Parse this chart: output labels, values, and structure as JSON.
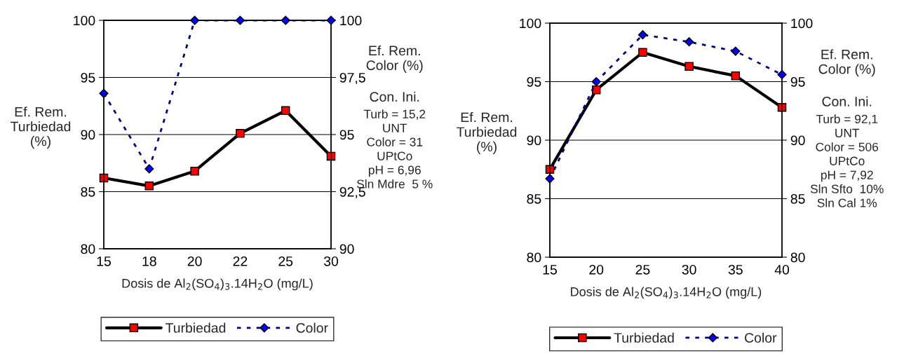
{
  "chart_data": [
    {
      "type": "line",
      "xlabel": "Dosis de Al$_{2}$(SO$_{4}$)$_{3}$.14H$_{2}$O (mg/L)",
      "ylabel": "Ef. Rem.\nTurbiedad\n(%)",
      "y2label": "Ef. Rem.\nColor (%)",
      "categories": [
        "15",
        "18",
        "20",
        "22",
        "25",
        "30"
      ],
      "series": [
        {
          "name": "Turbiedad",
          "color": "#000000",
          "marker": "square",
          "line_style": "solid",
          "values": [
            86.2,
            85.5,
            86.8,
            90.1,
            92.1,
            88.1
          ]
        },
        {
          "name": "Color",
          "color": "#000080",
          "marker": "diamond",
          "line_style": "dashed",
          "axis": "y2",
          "values": [
            96.8,
            93.5,
            100,
            100,
            100,
            100
          ]
        }
      ],
      "ylim": [
        80,
        100
      ],
      "yticks": [
        80,
        85,
        90,
        95,
        100
      ],
      "y2lim": [
        90,
        100
      ],
      "y2ticks": [
        90,
        {
          "value": 92.5,
          "label": "92,5"
        },
        95,
        {
          "value": 97.5,
          "label": "97,5"
        },
        100
      ],
      "grid": "y",
      "legend": "bottom",
      "annotations": [
        "Con. Ini.",
        "Turb = 15,2\nUNT\nColor = 31\nUPtCo\npH = 6,96\nSln Mdre  5 %"
      ]
    },
    {
      "type": "line",
      "xlabel": "Dosis de Al$_{2}$(SO$_{4}$)$_{3}$.14H$_{2}$O (mg/L)",
      "ylabel": "Ef. Rem.\nTurbiedad\n(%)",
      "y2label": "Ef. Rem.\nColor (%)",
      "x": [
        15,
        20,
        25,
        30,
        35,
        40
      ],
      "series": [
        {
          "name": "Turbiedad",
          "color": "#000000",
          "marker": "square",
          "line_style": "solid",
          "values": [
            87.5,
            94.3,
            97.5,
            96.3,
            95.5,
            92.8
          ]
        },
        {
          "name": "Color",
          "color": "#000080",
          "marker": "diamond",
          "line_style": "dashed",
          "axis": "y2",
          "values": [
            86.7,
            95.0,
            99.0,
            98.4,
            97.6,
            95.6
          ]
        }
      ],
      "xlim": [
        15,
        40
      ],
      "xticks": [
        15,
        20,
        25,
        30,
        35,
        40
      ],
      "ylim": [
        80,
        100
      ],
      "yticks": [
        80,
        85,
        90,
        95,
        100
      ],
      "y2lim": [
        80,
        100
      ],
      "y2ticks": [
        80,
        85,
        90,
        95,
        100
      ],
      "grid": "y",
      "legend": "bottom",
      "annotations": [
        "Con. Ini.",
        "Turb = 92,1\nUNT\nColor = 506\nUPtCo\npH = 7,92\nSln Sfto  10%\nSln Cal 1%"
      ]
    }
  ]
}
